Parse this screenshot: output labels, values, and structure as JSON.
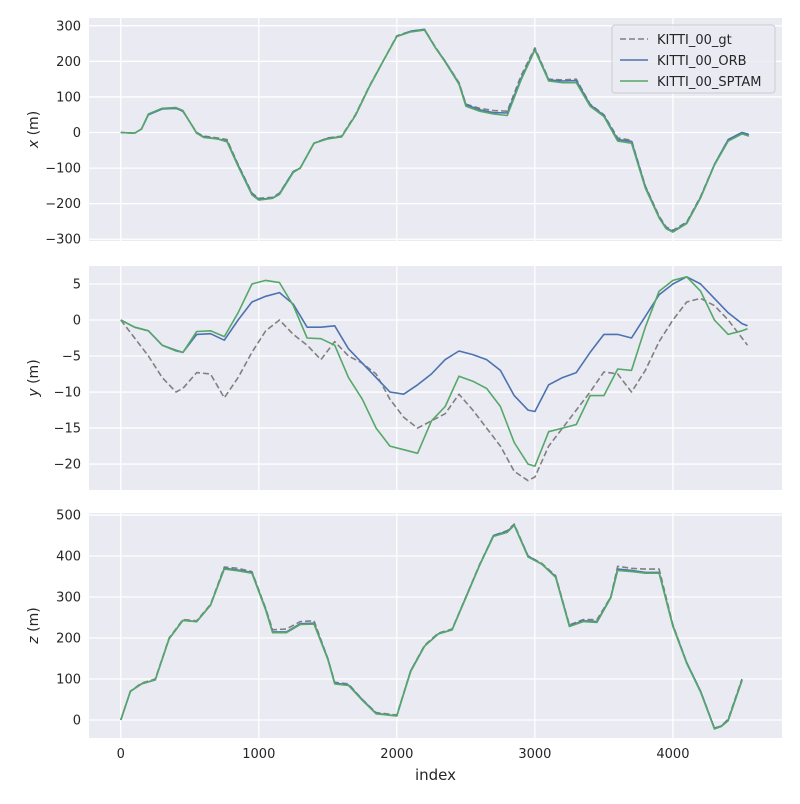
{
  "chart_data": [
    {
      "type": "line",
      "ylabel": "x (m)",
      "ylim": [
        -305,
        322
      ],
      "xlim": [
        -230,
        4790
      ],
      "yticks": [
        -300,
        -200,
        -100,
        0,
        100,
        200,
        300
      ],
      "legend": "top-right",
      "x": [
        0,
        100,
        150,
        200,
        300,
        400,
        450,
        500,
        550,
        600,
        700,
        770,
        850,
        950,
        1000,
        1100,
        1150,
        1250,
        1300,
        1400,
        1500,
        1600,
        1700,
        1800,
        1900,
        2000,
        2100,
        2200,
        2280,
        2350,
        2450,
        2500,
        2600,
        2700,
        2800,
        2900,
        3000,
        3100,
        3200,
        3300,
        3400,
        3500,
        3600,
        3700,
        3800,
        3900,
        3950,
        4000,
        4100,
        4200,
        4300,
        4400,
        4500,
        4550
      ],
      "series": [
        {
          "name": "KITTI_00_gt",
          "color": "#808080",
          "dash": true,
          "values": [
            0,
            -2,
            10,
            50,
            67,
            68,
            60,
            30,
            0,
            -10,
            -15,
            -20,
            -90,
            -170,
            -185,
            -182,
            -170,
            -110,
            -100,
            -30,
            -15,
            -10,
            50,
            130,
            200,
            272,
            285,
            290,
            240,
            200,
            140,
            80,
            68,
            62,
            60,
            160,
            238,
            150,
            148,
            150,
            80,
            50,
            -15,
            -22,
            -150,
            -235,
            -265,
            -275,
            -252,
            -180,
            -90,
            -20,
            0,
            -5
          ]
        },
        {
          "name": "KITTI_00_ORB",
          "color": "#4c72b0",
          "values": [
            0,
            -2,
            10,
            50,
            66,
            68,
            60,
            30,
            -2,
            -12,
            -18,
            -24,
            -92,
            -172,
            -188,
            -184,
            -172,
            -110,
            -100,
            -30,
            -16,
            -12,
            48,
            128,
            200,
            270,
            285,
            290,
            238,
            200,
            138,
            78,
            64,
            56,
            55,
            152,
            234,
            148,
            145,
            146,
            78,
            48,
            -20,
            -25,
            -152,
            -238,
            -268,
            -278,
            -254,
            -182,
            -90,
            -20,
            0,
            -6
          ]
        },
        {
          "name": "KITTI_00_SPTAM",
          "color": "#55a868",
          "values": [
            0,
            -2,
            10,
            52,
            68,
            70,
            62,
            30,
            -2,
            -14,
            -18,
            -26,
            -95,
            -175,
            -190,
            -185,
            -174,
            -112,
            -100,
            -30,
            -18,
            -12,
            48,
            128,
            200,
            270,
            283,
            288,
            238,
            198,
            136,
            74,
            60,
            52,
            48,
            148,
            232,
            145,
            140,
            140,
            74,
            45,
            -24,
            -30,
            -156,
            -240,
            -270,
            -280,
            -256,
            -184,
            -92,
            -24,
            -4,
            -10
          ]
        }
      ]
    },
    {
      "type": "line",
      "ylabel": "y (m)",
      "ylim": [
        -23.6,
        7.5
      ],
      "xlim": [
        -230,
        4790
      ],
      "yticks": [
        -20,
        -15,
        -10,
        -5,
        0,
        5
      ],
      "x": [
        0,
        100,
        200,
        300,
        400,
        450,
        550,
        650,
        750,
        850,
        950,
        1050,
        1150,
        1250,
        1350,
        1450,
        1550,
        1650,
        1750,
        1850,
        1950,
        2050,
        2150,
        2250,
        2350,
        2450,
        2550,
        2650,
        2750,
        2850,
        2950,
        3000,
        3100,
        3200,
        3300,
        3400,
        3500,
        3600,
        3700,
        3800,
        3900,
        4000,
        4100,
        4200,
        4300,
        4400,
        4500,
        4540
      ],
      "series": [
        {
          "name": "KITTI_00_gt",
          "color": "#808080",
          "dash": true,
          "values": [
            0,
            -2.5,
            -5,
            -8,
            -10,
            -9.5,
            -7.3,
            -7.5,
            -10.8,
            -8,
            -4.5,
            -1.5,
            0,
            -2,
            -3.5,
            -5.5,
            -3,
            -5,
            -6,
            -7.5,
            -11,
            -13.5,
            -15,
            -14,
            -13,
            -10.3,
            -12.5,
            -15,
            -17.5,
            -21,
            -22.3,
            -21.8,
            -17.5,
            -15,
            -12.5,
            -10,
            -7.2,
            -7.5,
            -10,
            -7,
            -3,
            0,
            2.5,
            3,
            2,
            0,
            -2.5,
            -3.5
          ]
        },
        {
          "name": "KITTI_00_ORB",
          "color": "#4c72b0",
          "values": [
            0,
            -1,
            -1.5,
            -3.5,
            -4.2,
            -4.5,
            -2,
            -1.9,
            -2.8,
            0,
            2.5,
            3.3,
            3.8,
            2.2,
            -1,
            -1,
            -0.8,
            -4,
            -6,
            -8,
            -10,
            -10.3,
            -9,
            -7.5,
            -5.5,
            -4.3,
            -4.8,
            -5.5,
            -7,
            -10.5,
            -12.5,
            -12.7,
            -9,
            -8,
            -7.3,
            -4.5,
            -2,
            -2,
            -2.5,
            0.5,
            3.5,
            5,
            6,
            5,
            3,
            1,
            -0.5,
            -0.8
          ]
        },
        {
          "name": "KITTI_00_SPTAM",
          "color": "#55a868",
          "values": [
            0,
            -1,
            -1.5,
            -3.5,
            -4.3,
            -4.5,
            -1.6,
            -1.5,
            -2.3,
            1,
            5,
            5.5,
            5.2,
            2,
            -2.5,
            -2.6,
            -3.5,
            -8,
            -11,
            -15,
            -17.5,
            -18,
            -18.5,
            -14,
            -12,
            -7.8,
            -8.5,
            -9.5,
            -12,
            -17,
            -20,
            -20.3,
            -15.5,
            -15,
            -14.5,
            -10.5,
            -10.5,
            -6.8,
            -7,
            -1,
            4,
            5.5,
            6,
            4,
            0,
            -2,
            -1.5,
            -1.2
          ]
        }
      ]
    },
    {
      "type": "line",
      "ylabel": "z (m)",
      "xlabel": "index",
      "ylim": [
        -44,
        505
      ],
      "xlim": [
        -230,
        4790
      ],
      "yticks": [
        0,
        100,
        200,
        300,
        400,
        500
      ],
      "xticks": [
        0,
        1000,
        2000,
        3000,
        4000
      ],
      "x": [
        0,
        70,
        150,
        250,
        350,
        450,
        550,
        650,
        750,
        850,
        950,
        1050,
        1100,
        1200,
        1300,
        1400,
        1500,
        1550,
        1650,
        1750,
        1850,
        2000,
        2100,
        2200,
        2300,
        2400,
        2500,
        2600,
        2700,
        2800,
        2850,
        2950,
        3050,
        3150,
        3250,
        3350,
        3450,
        3550,
        3600,
        3700,
        3800,
        3900,
        4000,
        4100,
        4200,
        4300,
        4350,
        4400,
        4500
      ],
      "series": [
        {
          "name": "KITTI_00_gt",
          "color": "#808080",
          "dash": true,
          "values": [
            0,
            70,
            90,
            100,
            200,
            245,
            242,
            282,
            373,
            370,
            362,
            272,
            220,
            222,
            240,
            242,
            150,
            92,
            88,
            50,
            18,
            12,
            120,
            182,
            212,
            222,
            300,
            380,
            450,
            462,
            478,
            400,
            382,
            352,
            232,
            245,
            245,
            300,
            375,
            370,
            368,
            368,
            232,
            140,
            70,
            -20,
            -15,
            2,
            100
          ]
        },
        {
          "name": "KITTI_00_ORB",
          "color": "#4c72b0",
          "values": [
            0,
            70,
            88,
            98,
            198,
            243,
            240,
            280,
            370,
            366,
            360,
            270,
            215,
            215,
            235,
            236,
            150,
            90,
            85,
            50,
            16,
            10,
            120,
            180,
            210,
            220,
            300,
            378,
            450,
            460,
            476,
            400,
            380,
            350,
            230,
            242,
            240,
            300,
            368,
            365,
            360,
            360,
            230,
            140,
            70,
            -20,
            -15,
            0,
            98
          ]
        },
        {
          "name": "KITTI_00_SPTAM",
          "color": "#55a868",
          "values": [
            0,
            70,
            88,
            98,
            198,
            243,
            240,
            280,
            368,
            364,
            358,
            268,
            213,
            213,
            233,
            234,
            148,
            88,
            84,
            48,
            15,
            10,
            118,
            180,
            210,
            220,
            298,
            378,
            448,
            458,
            475,
            398,
            380,
            348,
            228,
            240,
            238,
            298,
            365,
            362,
            358,
            358,
            228,
            138,
            68,
            -22,
            -16,
            -2,
            96
          ]
        }
      ]
    }
  ]
}
